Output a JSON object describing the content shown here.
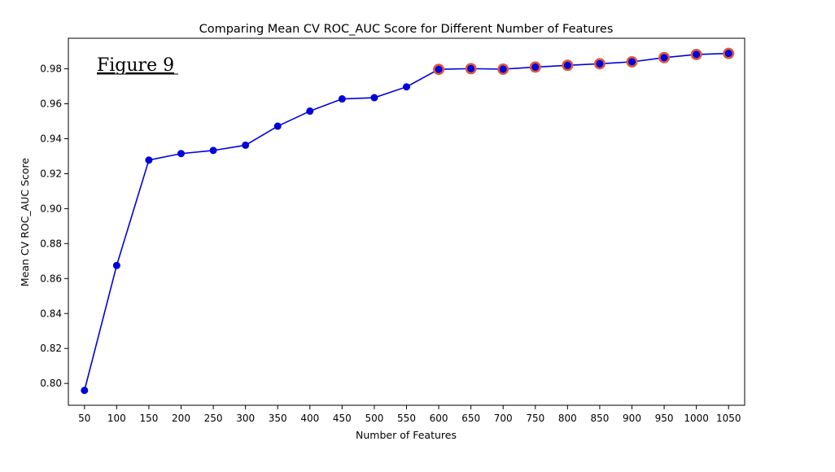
{
  "annotation": "Figure 9",
  "chart_data": {
    "type": "line",
    "title": "Comparing Mean CV ROC_AUC Score for Different Number of Features",
    "xlabel": "Number of Features",
    "ylabel": "Mean CV ROC_AUC Score",
    "x": [
      50,
      100,
      150,
      200,
      250,
      300,
      350,
      400,
      450,
      500,
      550,
      600,
      650,
      700,
      750,
      800,
      850,
      900,
      950,
      1000,
      1050
    ],
    "series": [
      {
        "values": [
          0.796,
          0.8675,
          0.9278,
          0.9315,
          0.9333,
          0.9363,
          0.9472,
          0.9558,
          0.9628,
          0.9635,
          0.9697,
          0.9797,
          0.9801,
          0.9798,
          0.981,
          0.982,
          0.9829,
          0.984,
          0.9864,
          0.9882,
          0.9888
        ],
        "color": "#0000dd"
      }
    ],
    "highlighted_from_x": 600,
    "highlight_color": "#e05a3a",
    "xlim": [
      25,
      1075
    ],
    "ylim": [
      0.7875,
      0.9975
    ],
    "yticks": [
      0.8,
      0.82,
      0.84,
      0.86,
      0.88,
      0.9,
      0.92,
      0.94,
      0.96,
      0.98
    ],
    "xticks": [
      50,
      100,
      150,
      200,
      250,
      300,
      350,
      400,
      450,
      500,
      550,
      600,
      650,
      700,
      750,
      800,
      850,
      900,
      950,
      1000,
      1050
    ],
    "grid": false,
    "legend": "none"
  }
}
